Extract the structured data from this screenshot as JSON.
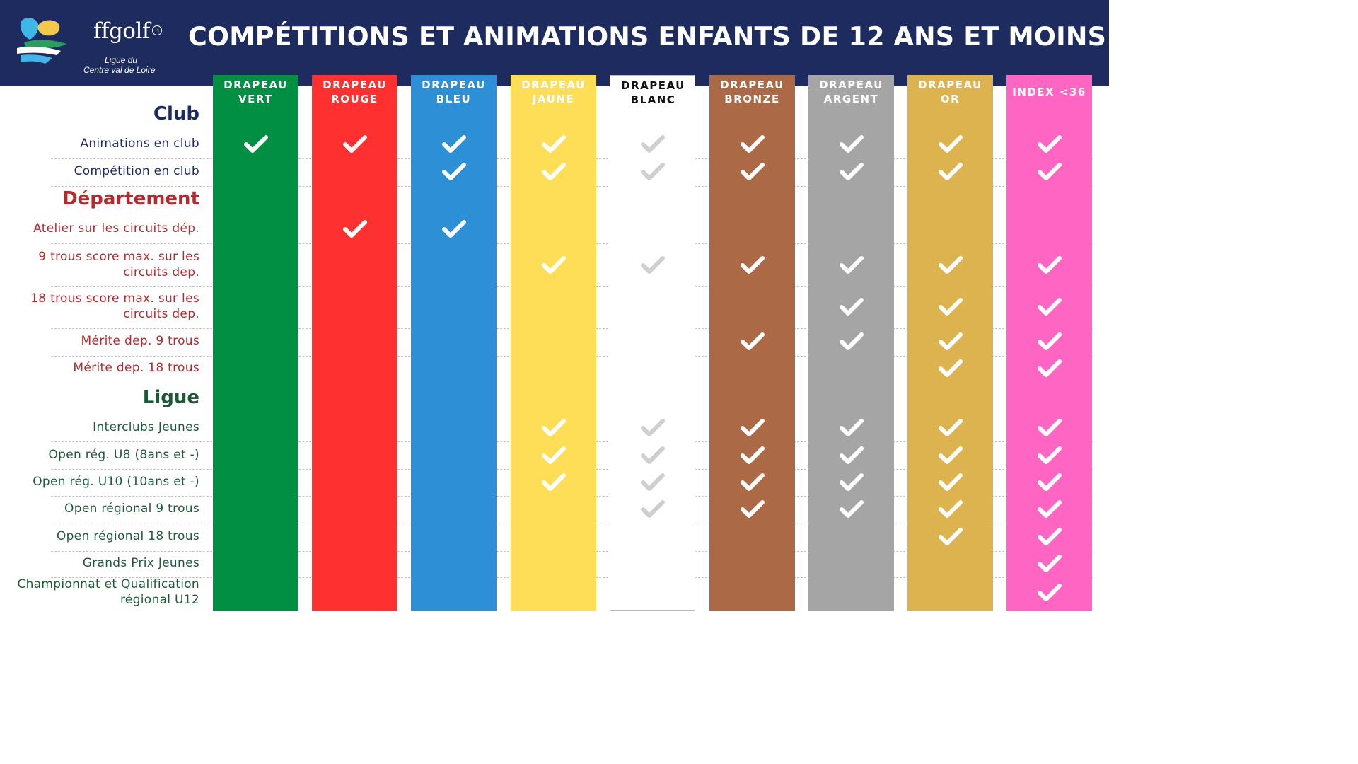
{
  "header": {
    "logo_brand": "ffgolf",
    "logo_reg": "R",
    "logo_subtitle_line1": "Ligue du",
    "logo_subtitle_line2": "Centre val de Loire",
    "title": "COMPÉTITIONS ET ANIMATIONS ENFANTS DE 12 ANS ET MOINS"
  },
  "colors": {
    "header_bg": "#1d2b5f",
    "vert": "#008f43",
    "rouge": "#ff3030",
    "bleu": "#2d8fd6",
    "jaune": "#ffde57",
    "blanc": "#ffffff",
    "bronze": "#ab6a45",
    "argent": "#a5a5a5",
    "or": "#ddb34f",
    "index": "#ff66c4",
    "check_white": "#ffffff",
    "check_gray": "#cfcfcf"
  },
  "columns": [
    {
      "line1": "DRAPEAU",
      "line2": "VERT",
      "bg": "#008f43",
      "text_color": "#ffffff",
      "check_color": "#ffffff"
    },
    {
      "line1": "DRAPEAU",
      "line2": "ROUGE",
      "bg": "#ff3030",
      "text_color": "#ffffff",
      "check_color": "#ffffff"
    },
    {
      "line1": "DRAPEAU",
      "line2": "BLEU",
      "bg": "#2d8fd6",
      "text_color": "#ffffff",
      "check_color": "#ffffff"
    },
    {
      "line1": "DRAPEAU",
      "line2": "JAUNE",
      "bg": "#ffde57",
      "text_color": "#ffffff",
      "check_color": "#ffffff"
    },
    {
      "line1": "DRAPEAU",
      "line2": "BLANC",
      "bg": "#ffffff",
      "text_color": "#111111",
      "check_color": "#cfcfcf"
    },
    {
      "line1": "DRAPEAU",
      "line2": "BRONZE",
      "bg": "#ab6a45",
      "text_color": "#ffffff",
      "check_color": "#ffffff"
    },
    {
      "line1": "DRAPEAU",
      "line2": "ARGENT",
      "bg": "#a5a5a5",
      "text_color": "#ffffff",
      "check_color": "#ffffff"
    },
    {
      "line1": "DRAPEAU",
      "line2": "OR",
      "bg": "#ddb34f",
      "text_color": "#ffffff",
      "check_color": "#ffffff"
    },
    {
      "line1": "INDEX <36",
      "line2": "",
      "bg": "#ff66c4",
      "text_color": "#ffffff",
      "check_color": "#ffffff"
    }
  ],
  "sections": {
    "club": "Club",
    "departement": "Département",
    "ligue": "Ligue"
  },
  "rows": [
    {
      "label": "Animations en club",
      "group": "club",
      "checks": [
        1,
        1,
        1,
        1,
        1,
        1,
        1,
        1,
        1
      ]
    },
    {
      "label": "Compétition en club",
      "group": "club",
      "checks": [
        0,
        0,
        1,
        1,
        1,
        1,
        1,
        1,
        1
      ]
    },
    {
      "label": "Atelier sur les circuits dép.",
      "group": "departement",
      "checks": [
        0,
        1,
        1,
        0,
        0,
        0,
        0,
        0,
        0
      ]
    },
    {
      "label": "9 trous score max. sur les circuits dep.",
      "group": "departement",
      "checks": [
        0,
        0,
        0,
        1,
        1,
        1,
        1,
        1,
        1
      ]
    },
    {
      "label": "18 trous score max. sur les circuits dep.",
      "group": "departement",
      "checks": [
        0,
        0,
        0,
        0,
        0,
        0,
        1,
        1,
        1
      ]
    },
    {
      "label": "Mérite dep. 9 trous",
      "group": "departement",
      "checks": [
        0,
        0,
        0,
        0,
        0,
        1,
        1,
        1,
        1
      ]
    },
    {
      "label": "Mérite dep. 18 trous",
      "group": "departement",
      "checks": [
        0,
        0,
        0,
        0,
        0,
        0,
        0,
        1,
        1
      ]
    },
    {
      "label": "Interclubs Jeunes",
      "group": "ligue",
      "checks": [
        0,
        0,
        0,
        1,
        1,
        1,
        1,
        1,
        1
      ]
    },
    {
      "label": "Open rég. U8 (8ans et -)",
      "group": "ligue",
      "checks": [
        0,
        0,
        0,
        1,
        1,
        1,
        1,
        1,
        1
      ]
    },
    {
      "label": "Open rég. U10 (10ans et -)",
      "group": "ligue",
      "checks": [
        0,
        0,
        0,
        1,
        1,
        1,
        1,
        1,
        1
      ]
    },
    {
      "label": "Open régional 9 trous",
      "group": "ligue",
      "checks": [
        0,
        0,
        0,
        0,
        1,
        1,
        1,
        1,
        1
      ]
    },
    {
      "label": "Open régional 18 trous",
      "group": "ligue",
      "checks": [
        0,
        0,
        0,
        0,
        0,
        0,
        0,
        1,
        1
      ]
    },
    {
      "label": "Grands Prix Jeunes",
      "group": "ligue",
      "checks": [
        0,
        0,
        0,
        0,
        0,
        0,
        0,
        0,
        1
      ]
    },
    {
      "label": "Championnat et Qualification régional U12",
      "group": "ligue",
      "checks": [
        0,
        0,
        0,
        0,
        0,
        0,
        0,
        0,
        1
      ]
    }
  ],
  "icons": {
    "check": "check-icon",
    "logo": "ffgolf-logo-icon"
  }
}
